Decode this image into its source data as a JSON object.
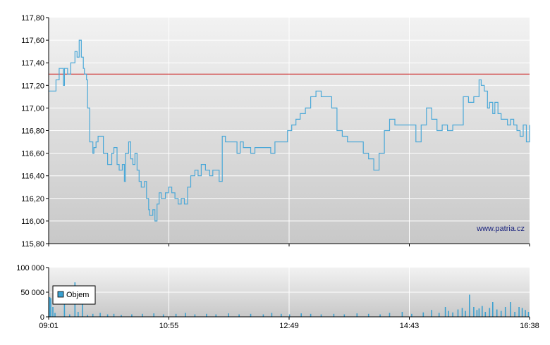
{
  "watermark": "www.patria.cz",
  "legend": {
    "label": "Objem"
  },
  "colors": {
    "price_line": "#4aa8d8",
    "reference_line": "#cc2222",
    "volume_bar": "#3aa0d0",
    "grid": "#ffffff",
    "plot_top": "#f2f2f2",
    "plot_bottom": "#c8c8c8"
  },
  "chart_data": [
    {
      "type": "line",
      "name": "price",
      "x_ticks": [
        "09:01",
        "10:55",
        "12:49",
        "14:43",
        "16:38"
      ],
      "y_ticks": [
        "117,80",
        "117,60",
        "117,40",
        "117,20",
        "117,00",
        "116,80",
        "116,60",
        "116,40",
        "116,20",
        "116,00",
        "115,80"
      ],
      "ylim": [
        115.8,
        117.8
      ],
      "xlim_minutes": [
        541,
        998
      ],
      "reference_line": 117.3,
      "x": [
        541,
        546,
        548,
        551,
        555,
        556,
        559,
        562,
        564,
        566,
        568,
        570,
        572,
        574,
        575,
        577,
        578,
        580,
        583,
        584,
        586,
        588,
        590,
        593,
        597,
        601,
        603,
        606,
        608,
        611,
        613,
        614,
        617,
        619,
        621,
        623,
        625,
        627,
        629,
        632,
        634,
        636,
        637,
        640,
        642,
        644,
        646,
        648,
        650,
        652,
        655,
        658,
        661,
        664,
        667,
        670,
        673,
        676,
        680,
        683,
        686,
        690,
        694,
        697,
        701,
        703,
        706,
        709,
        712,
        716,
        720,
        723,
        726,
        729,
        733,
        737,
        740,
        744,
        748,
        752,
        756,
        760,
        764,
        768,
        772,
        776,
        780,
        785,
        790,
        795,
        800,
        805,
        810,
        815,
        820,
        825,
        830,
        835,
        840,
        845,
        850,
        855,
        860,
        865,
        870,
        875,
        880,
        885,
        890,
        895,
        900,
        905,
        910,
        915,
        920,
        925,
        930,
        935,
        940,
        945,
        950,
        952,
        955,
        958,
        960,
        963,
        965,
        968,
        971,
        974,
        977,
        980,
        983,
        986,
        989,
        992,
        995,
        998
      ],
      "values": [
        117.15,
        117.15,
        117.25,
        117.35,
        117.2,
        117.35,
        117.3,
        117.4,
        117.4,
        117.5,
        117.45,
        117.6,
        117.45,
        117.35,
        117.3,
        117.25,
        117.0,
        116.7,
        116.6,
        116.65,
        116.7,
        116.75,
        116.75,
        116.6,
        116.5,
        116.6,
        116.65,
        116.5,
        116.45,
        116.5,
        116.35,
        116.6,
        116.7,
        116.55,
        116.5,
        116.6,
        116.45,
        116.35,
        116.3,
        116.35,
        116.2,
        116.1,
        116.05,
        116.1,
        116.0,
        116.15,
        116.25,
        116.2,
        116.2,
        116.25,
        116.3,
        116.25,
        116.2,
        116.15,
        116.2,
        116.15,
        116.3,
        116.4,
        116.45,
        116.4,
        116.5,
        116.45,
        116.4,
        116.45,
        116.45,
        116.35,
        116.75,
        116.7,
        116.7,
        116.7,
        116.6,
        116.7,
        116.65,
        116.65,
        116.6,
        116.65,
        116.65,
        116.65,
        116.65,
        116.6,
        116.7,
        116.7,
        116.7,
        116.8,
        116.85,
        116.9,
        116.95,
        117.0,
        117.1,
        117.15,
        117.1,
        117.1,
        117.0,
        116.8,
        116.75,
        116.7,
        116.7,
        116.7,
        116.6,
        116.55,
        116.45,
        116.6,
        116.8,
        116.9,
        116.85,
        116.85,
        116.85,
        116.85,
        116.7,
        116.85,
        117.0,
        116.9,
        116.8,
        116.85,
        116.8,
        116.85,
        116.85,
        117.1,
        117.05,
        117.1,
        117.25,
        117.2,
        117.15,
        117.0,
        117.05,
        116.95,
        117.05,
        116.95,
        116.9,
        116.9,
        116.85,
        116.9,
        116.85,
        116.8,
        116.75,
        116.85,
        116.7,
        116.85
      ]
    },
    {
      "type": "bar",
      "name": "Objem",
      "y_ticks": [
        "100 000",
        "50 000",
        "0"
      ],
      "ylim": [
        0,
        100000
      ],
      "xlim_minutes": [
        541,
        998
      ],
      "x": [
        542,
        543,
        545,
        547,
        556,
        561,
        566,
        569,
        573,
        578,
        583,
        590,
        597,
        603,
        610,
        620,
        630,
        641,
        650,
        662,
        671,
        680,
        691,
        700,
        712,
        722,
        733,
        745,
        753,
        762,
        770,
        781,
        790,
        800,
        812,
        822,
        834,
        845,
        856,
        865,
        877,
        886,
        897,
        905,
        912,
        918,
        921,
        925,
        930,
        934,
        937,
        941,
        945,
        948,
        950,
        953,
        956,
        960,
        963,
        967,
        971,
        975,
        980,
        984,
        988,
        991,
        994,
        997
      ],
      "values": [
        40000,
        38000,
        20000,
        8000,
        30000,
        5000,
        70000,
        10000,
        25000,
        4000,
        6000,
        8000,
        5000,
        6000,
        4000,
        5000,
        6000,
        7000,
        5000,
        6000,
        8000,
        5000,
        6000,
        5000,
        7000,
        5000,
        6000,
        5000,
        8000,
        6000,
        5000,
        7000,
        6000,
        5000,
        6000,
        5000,
        7000,
        6000,
        5000,
        8000,
        10000,
        6000,
        9000,
        14000,
        8000,
        20000,
        12000,
        9000,
        15000,
        18000,
        12000,
        45000,
        20000,
        14000,
        17000,
        22000,
        10000,
        18000,
        30000,
        15000,
        12000,
        20000,
        30000,
        10000,
        20000,
        18000,
        14000,
        10000
      ]
    }
  ]
}
